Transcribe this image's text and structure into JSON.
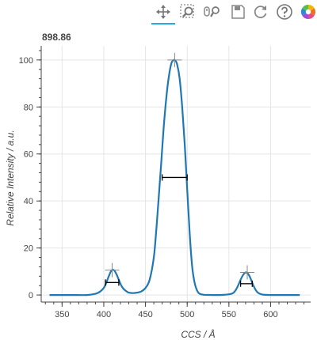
{
  "toolbar": {
    "tools": [
      {
        "name": "pan-tool",
        "icon": "pan-icon",
        "active": true
      },
      {
        "name": "box-zoom-tool",
        "icon": "box-zoom-icon",
        "active": false
      },
      {
        "name": "wheel-zoom-tool",
        "icon": "wheel-zoom-icon",
        "active": false
      },
      {
        "name": "save-tool",
        "icon": "save-icon",
        "active": false
      },
      {
        "name": "reset-tool",
        "icon": "reset-icon",
        "active": false
      },
      {
        "name": "help-tool",
        "icon": "help-icon",
        "active": false
      },
      {
        "name": "bokeh-logo",
        "icon": "bokeh-logo-icon",
        "active": false
      }
    ]
  },
  "chart_data": {
    "type": "line",
    "title": "898.86",
    "xlabel": "CCS / Å",
    "ylabel": "Relative Intensity / a.u.",
    "xlim": [
      325,
      648
    ],
    "ylim": [
      -3,
      106
    ],
    "xticks": [
      350,
      400,
      450,
      500,
      550,
      600
    ],
    "yticks": [
      0,
      20,
      40,
      60,
      80,
      100
    ],
    "grid": true,
    "line_color": "#1f77b4",
    "series": [
      {
        "x": [
          335,
          360,
          380,
          390,
          395,
          400,
          403,
          406,
          409,
          412,
          415,
          418,
          421,
          424,
          427,
          430,
          435,
          440,
          445,
          450,
          455,
          460,
          463,
          466,
          469,
          472,
          475,
          478,
          481,
          484,
          486,
          488,
          491,
          494,
          497,
          500,
          503,
          506,
          509,
          512,
          515,
          520,
          530,
          540,
          550,
          555,
          558,
          561,
          564,
          567,
          570,
          573,
          576,
          579,
          582,
          585,
          590,
          600,
          620,
          635
        ],
        "y": [
          0,
          0,
          0,
          0.5,
          1.3,
          3,
          5.2,
          8,
          10.3,
          10.6,
          9,
          6.5,
          4,
          2.5,
          1.6,
          1,
          0.8,
          1,
          1.5,
          3,
          6.5,
          16,
          28,
          42,
          57,
          72,
          84,
          93,
          98.5,
          100,
          99.6,
          98,
          92,
          80,
          64,
          45,
          26,
          12,
          5,
          1.8,
          0.5,
          0.1,
          0,
          0,
          0.3,
          0.8,
          2,
          4,
          6.5,
          8.5,
          9.6,
          9,
          7,
          4.3,
          2.2,
          0.9,
          0.2,
          0,
          0,
          0
        ]
      }
    ],
    "peaks": [
      {
        "x": 410,
        "y": 10.6
      },
      {
        "x": 485,
        "y": 100
      },
      {
        "x": 572,
        "y": 9.6
      }
    ],
    "fwhm": [
      {
        "x0": 402,
        "x1": 418,
        "y": 5.3
      },
      {
        "x0": 470,
        "x1": 500,
        "y": 50
      },
      {
        "x0": 564,
        "x1": 578,
        "y": 4.8
      }
    ]
  }
}
